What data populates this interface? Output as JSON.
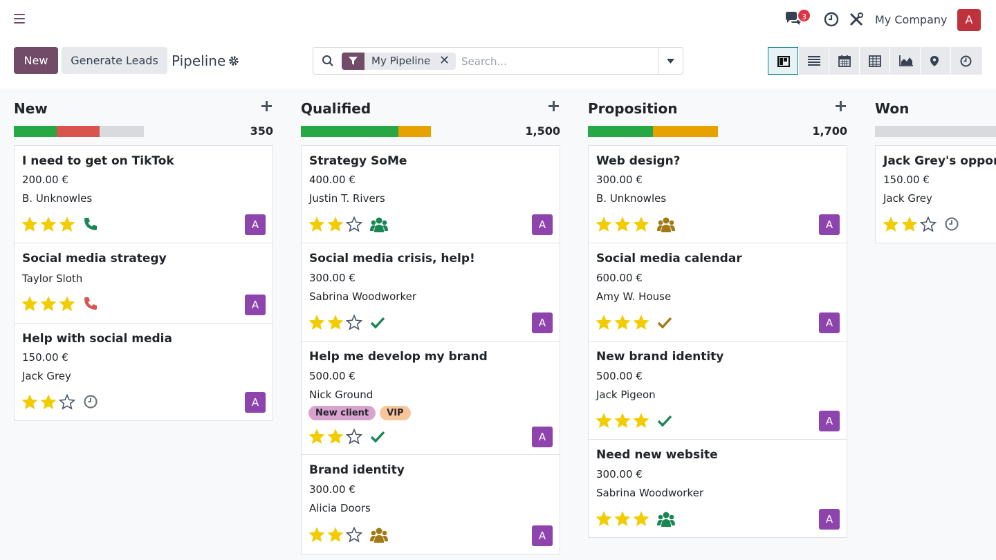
{
  "navbar": {
    "notification_count": "3",
    "company": "My Company",
    "user_initial": "A"
  },
  "control": {
    "new_label": "New",
    "generate_label": "Generate Leads",
    "title": "Pipeline",
    "facet_label": "My Pipeline",
    "search_placeholder": "Search..."
  },
  "colors": {
    "brand": "#714b67",
    "star_on": "#f3cc00",
    "green": "#28a745",
    "red": "#d9534f",
    "orange": "#e8a200",
    "avatar": "#8e44ad"
  },
  "columns": [
    {
      "title": "New",
      "total": "350",
      "progress": [
        {
          "color": "#28a745",
          "fraction": 0.33
        },
        {
          "color": "#d9534f",
          "fraction": 0.33
        }
      ],
      "cards": [
        {
          "title": "I need to get on TikTok",
          "amount": "200.00 €",
          "contact": "B. Unknowles",
          "stars": 3,
          "activity": "phone-icon",
          "activity_color": "#198754"
        },
        {
          "title": "Social media strategy",
          "amount": "",
          "contact": "Taylor Sloth",
          "stars": 3,
          "activity": "phone-icon",
          "activity_color": "#d9534f"
        },
        {
          "title": "Help with social media",
          "amount": "150.00 €",
          "contact": "Jack Grey",
          "stars": 2,
          "activity": "clock-icon",
          "activity_color": "#6c757d"
        }
      ]
    },
    {
      "title": "Qualified",
      "total": "1,500",
      "progress": [
        {
          "color": "#28a745",
          "fraction": 0.75
        },
        {
          "color": "#e8a200",
          "fraction": 0.25
        }
      ],
      "cards": [
        {
          "title": "Strategy SoMe",
          "amount": "400.00 €",
          "contact": "Justin T. Rivers",
          "stars": 2,
          "activity": "users-icon",
          "activity_color": "#198754"
        },
        {
          "title": "Social media crisis, help!",
          "amount": "300.00 €",
          "contact": "Sabrina Woodworker",
          "stars": 2,
          "activity": "check-icon",
          "activity_color": "#198754"
        },
        {
          "title": "Help me develop my brand",
          "amount": "500.00 €",
          "contact": "Nick Ground",
          "tags": [
            {
              "label": "New client",
              "color": "#d9a3cf"
            },
            {
              "label": "VIP",
              "color": "#f7c59a"
            }
          ],
          "stars": 2,
          "activity": "check-icon",
          "activity_color": "#198754"
        },
        {
          "title": "Brand identity",
          "amount": "300.00 €",
          "contact": "Alicia Doors",
          "stars": 2,
          "activity": "users-icon",
          "activity_color": "#a27a14"
        }
      ]
    },
    {
      "title": "Proposition",
      "total": "1,700",
      "progress": [
        {
          "color": "#28a745",
          "fraction": 0.5
        },
        {
          "color": "#e8a200",
          "fraction": 0.5
        }
      ],
      "cards": [
        {
          "title": "Web design?",
          "amount": "300.00 €",
          "contact": "B. Unknowles",
          "stars": 3,
          "activity": "users-icon",
          "activity_color": "#a27a14"
        },
        {
          "title": "Social media calendar",
          "amount": "600.00 €",
          "contact": "Amy W. House",
          "stars": 3,
          "activity": "check-icon",
          "activity_color": "#a27a14"
        },
        {
          "title": "New brand identity",
          "amount": "500.00 €",
          "contact": "Jack Pigeon",
          "stars": 3,
          "activity": "check-icon",
          "activity_color": "#198754"
        },
        {
          "title": "Need new website",
          "amount": "300.00 €",
          "contact": "Sabrina Woodworker",
          "stars": 3,
          "activity": "users-icon",
          "activity_color": "#198754"
        }
      ]
    },
    {
      "title": "Won",
      "total": "",
      "progress": [],
      "cards": [
        {
          "title": "Jack Grey's opportunity",
          "amount": "150.00 €",
          "contact": "Jack Grey",
          "stars": 2,
          "activity": "clock-icon",
          "activity_color": "#6c757d"
        }
      ]
    }
  ]
}
